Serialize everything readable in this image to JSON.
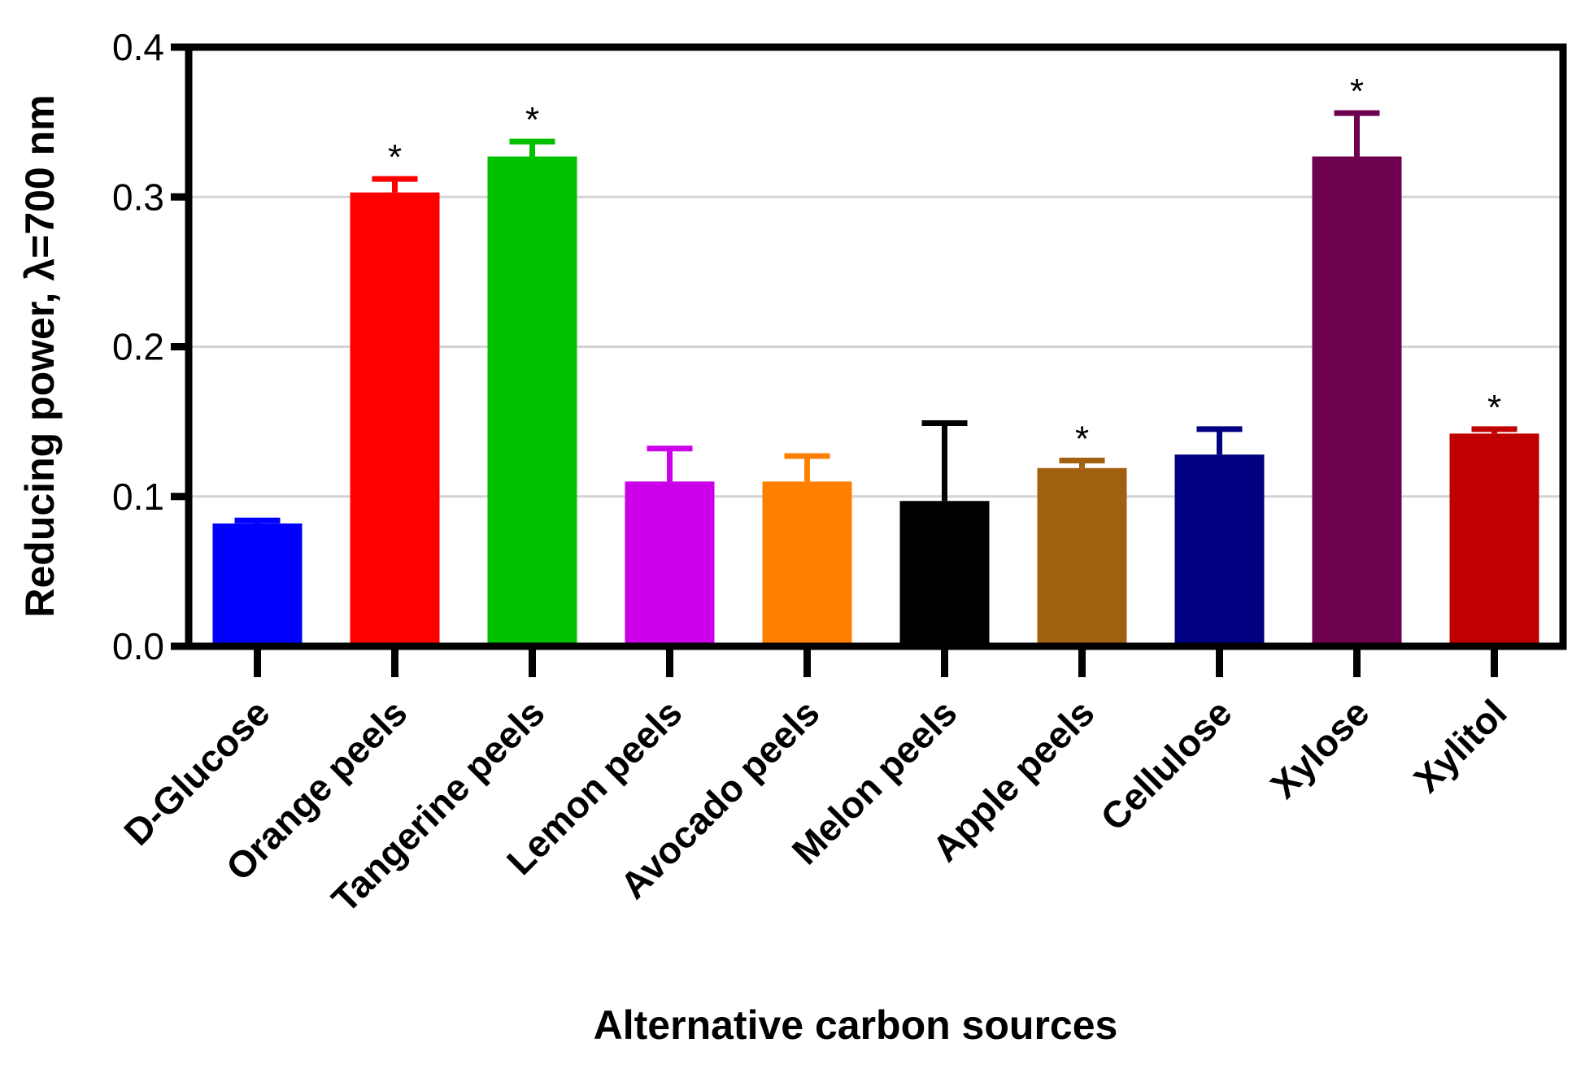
{
  "chart_data": {
    "type": "bar",
    "title": "",
    "xlabel": "Alternative carbon sources",
    "ylabel": "Reducing power, λ=700 nm",
    "ylim": [
      0,
      0.4
    ],
    "yticks": [
      0.0,
      0.1,
      0.2,
      0.3,
      0.4
    ],
    "ytick_labels": [
      "0.0",
      "0.1",
      "0.2",
      "0.3",
      "0.4"
    ],
    "grid": "horizontal",
    "categories": [
      "D-Glucose",
      "Orange peels",
      "Tangerine peels",
      "Lemon peels",
      "Avocado peels",
      "Melon peels",
      "Apple peels",
      "Cellulose",
      "Xylose",
      "Xylitol"
    ],
    "values": [
      0.082,
      0.303,
      0.327,
      0.11,
      0.11,
      0.097,
      0.119,
      0.128,
      0.327,
      0.142
    ],
    "errors": [
      0.002,
      0.009,
      0.01,
      0.022,
      0.017,
      0.052,
      0.005,
      0.017,
      0.029,
      0.003
    ],
    "significance": [
      "",
      "*",
      "*",
      "",
      "",
      "",
      "*",
      "",
      "*",
      "*"
    ],
    "colors": [
      "#0000FF",
      "#FF0000",
      "#00C000",
      "#CC00E8",
      "#FF8000",
      "#000000",
      "#A06010",
      "#000080",
      "#6E0050",
      "#C00000"
    ]
  }
}
